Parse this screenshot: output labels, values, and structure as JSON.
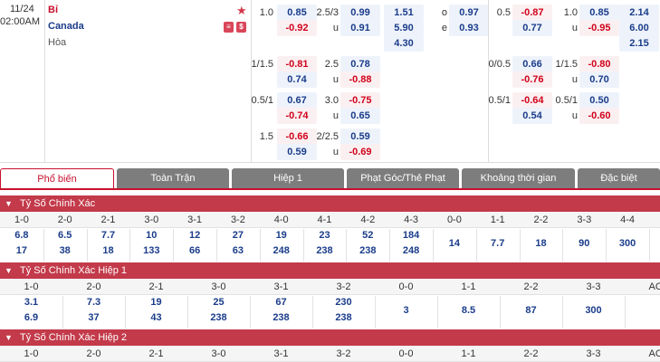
{
  "match": {
    "date": "11/24",
    "time": "02:00AM",
    "home": "Bỉ",
    "away": "Canada",
    "draw": "Hòa",
    "live_icon": "list-icon",
    "money_icon": "dollar-icon"
  },
  "ft_hdp": [
    {
      "line": "1.0",
      "home": "0.85",
      "away": "-0.92"
    },
    {
      "line": "1/1.5",
      "home": "-0.81",
      "away": "0.74"
    },
    {
      "line": "0.5/1",
      "home": "0.67",
      "away": "-0.74"
    },
    {
      "line": "1.5",
      "home": "-0.66",
      "away": "0.59"
    }
  ],
  "ft_ou": [
    {
      "line": "2.5/3",
      "over": "0.99",
      "u": "u",
      "under": "0.91"
    },
    {
      "line": "2.5",
      "over": "0.78",
      "u": "u",
      "under": "-0.88"
    },
    {
      "line": "3.0",
      "over": "-0.75",
      "u": "u",
      "under": "0.65"
    },
    {
      "line": "2/2.5",
      "over": "0.59",
      "u": "u",
      "under": "-0.69"
    }
  ],
  "ft_1x2": [
    "1.51",
    "5.90",
    "4.30"
  ],
  "ft_oe": {
    "o_label": "o",
    "o": "0.97",
    "e_label": "e",
    "e": "0.93"
  },
  "h1_hdp": [
    {
      "line": "0.5",
      "home": "-0.87",
      "away": "0.77"
    },
    {
      "line": "0/0.5",
      "home": "0.66",
      "away": "-0.76"
    },
    {
      "line": "0.5/1",
      "home": "-0.64",
      "away": "0.54"
    }
  ],
  "h1_ou": [
    {
      "line": "1.0",
      "over": "0.85",
      "u": "u",
      "under": "-0.95"
    },
    {
      "line": "1/1.5",
      "over": "-0.80",
      "u": "u",
      "under": "0.70"
    },
    {
      "line": "0.5/1",
      "over": "0.50",
      "u": "u",
      "under": "-0.60"
    }
  ],
  "h1_1x2": [
    "2.14",
    "6.00",
    "2.15"
  ],
  "tabs": [
    "Phổ biến",
    "Toàn Trận",
    "Hiệp 1",
    "Phạt Góc/Thẻ Phạt",
    "Khoảng thời gian",
    "Đặc biệt"
  ],
  "sections": [
    {
      "title": "Tỷ Số Chính Xác",
      "scores": [
        "1-0",
        "2-0",
        "2-1",
        "3-0",
        "3-1",
        "3-2",
        "4-0",
        "4-1",
        "4-2",
        "4-3",
        "0-0",
        "1-1",
        "2-2",
        "3-3",
        "4-4"
      ],
      "row1": [
        "6.8",
        "6.5",
        "7.7",
        "10",
        "12",
        "27",
        "19",
        "23",
        "52",
        "184",
        "14",
        "7.7",
        "18",
        "90",
        "300"
      ],
      "row2": [
        "17",
        "38",
        "18",
        "133",
        "66",
        "63",
        "248",
        "238",
        "238",
        "248"
      ]
    },
    {
      "title": "Tỷ Số Chính Xác Hiệp 1",
      "scores": [
        "1-0",
        "2-0",
        "2-1",
        "3-0",
        "3-1",
        "3-2",
        "0-0",
        "1-1",
        "2-2",
        "3-3",
        "AO"
      ],
      "row1": [
        "3.1",
        "7.3",
        "19",
        "25",
        "67",
        "230",
        "3",
        "8.5",
        "87",
        "300"
      ],
      "row2": [
        "6.9",
        "37",
        "43",
        "238",
        "238",
        "238"
      ]
    },
    {
      "title": "Tỷ Số Chính Xác Hiệp 2",
      "scores": [
        "1-0",
        "2-0",
        "2-1",
        "3-0",
        "3-1",
        "3-2",
        "0-0",
        "1-1",
        "2-2",
        "3-3",
        "AO"
      ]
    }
  ],
  "colors": {
    "accent": "#c8102e",
    "section": "#c33a4a",
    "blue": "#1a3c8a",
    "red": "#d0021b"
  }
}
